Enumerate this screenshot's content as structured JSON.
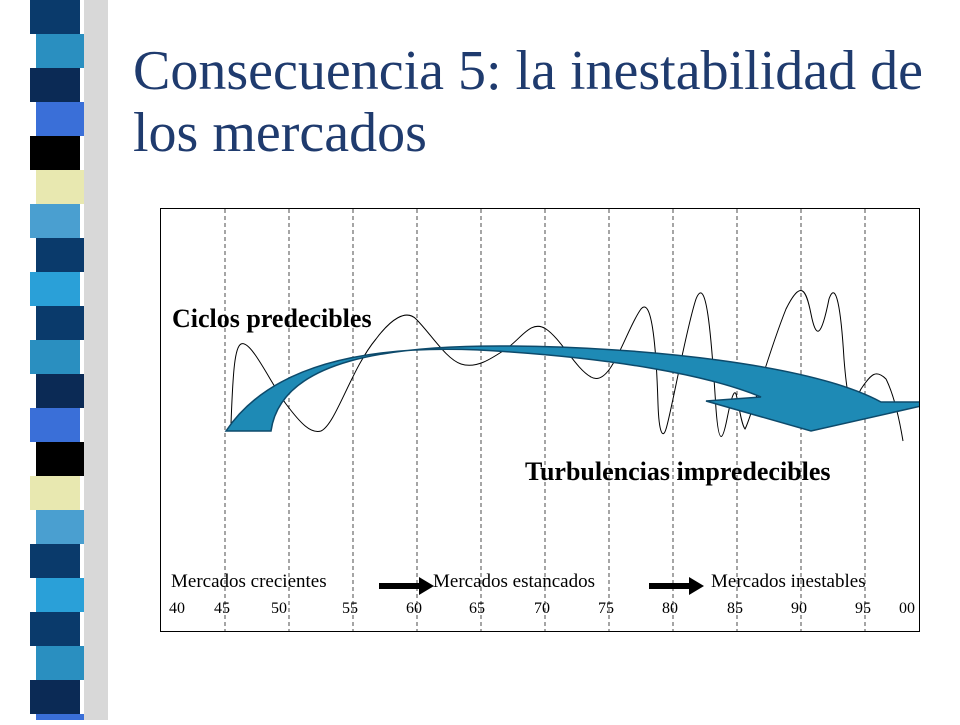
{
  "title": "Consecuencia 5: la inestabilidad de los mercados",
  "labels": {
    "predictable_cycles": "Ciclos predecibles",
    "turbulence": "Turbulencias impredecibles"
  },
  "stages": [
    "Mercados crecientes",
    "Mercados estancados",
    "Mercados inestables"
  ],
  "years": [
    "40",
    "45",
    "50",
    "55",
    "60",
    "65",
    "70",
    "75",
    "80",
    "85",
    "90",
    "95",
    "00"
  ],
  "colors": {
    "title": "#1f3b6e",
    "arrow_fill": "#1e8ab5",
    "arrow_stroke": "#0d4a6b",
    "strip": [
      "#0a3a6b",
      "#2a8fc0",
      "#0b2a55",
      "#3a6fd8",
      "#000000",
      "#e8e8b0",
      "#4a9fd0",
      "#0a3a6b",
      "#2aa0d8"
    ]
  }
}
